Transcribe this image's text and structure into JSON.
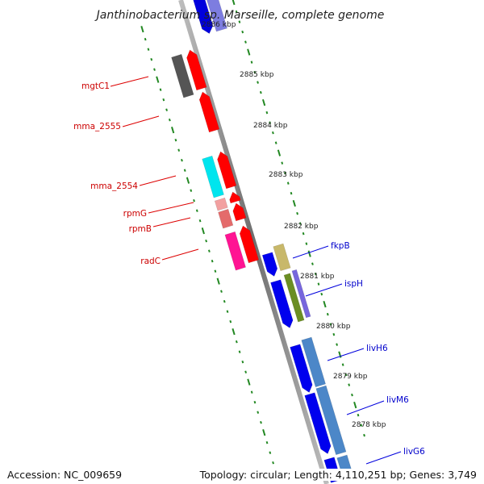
{
  "title": "Janthinobacterium sp. Marseille, complete genome",
  "footer": {
    "accession": "Accession: NC_009659",
    "topology": "Topology: circular; Length: 4,110,251 bp; Genes: 3,749"
  },
  "ruler": [
    "2886 kbp",
    "2885 kbp",
    "2884 kbp",
    "2883 kbp",
    "2882 kbp",
    "2881 kbp",
    "2880 kbp",
    "2879 kbp",
    "2878 kbp"
  ],
  "left_labels": [
    "mgtC1",
    "mma_2555",
    "mma_2554",
    "rpmG",
    "rpmB",
    "radC"
  ],
  "right_labels": [
    "fkpB",
    "ispH",
    "livH6",
    "livM6",
    "livG6"
  ],
  "colors": {
    "reverse_gene": "#ff0000",
    "forward_gene": "#0000ee",
    "left_label": "#cc0000",
    "right_label": "#0000cc",
    "backbone": "#888888",
    "tick": "#228822"
  }
}
